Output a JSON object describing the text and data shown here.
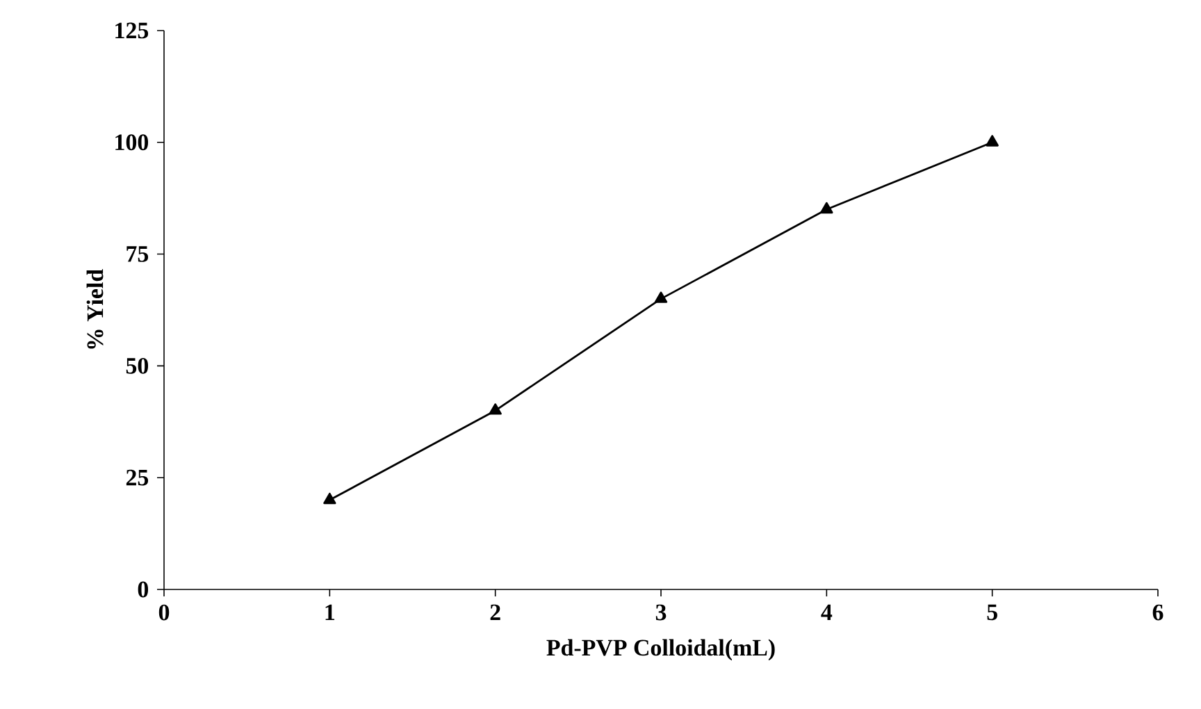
{
  "chart_data": {
    "type": "line",
    "xlabel": "Pd-PVP Colloidal(mL)",
    "ylabel": "% Yield",
    "x": [
      1,
      2,
      3,
      4,
      5
    ],
    "series": [
      {
        "color": "#000000",
        "values": [
          20,
          40,
          65,
          85,
          100
        ]
      }
    ],
    "xlim": [
      0,
      6
    ],
    "ylim": [
      0,
      125
    ],
    "xticks": [
      0,
      1,
      2,
      3,
      4,
      5,
      6
    ],
    "yticks": [
      0,
      25,
      50,
      75,
      100,
      125
    ],
    "marker": "triangle",
    "line_style": "solid"
  }
}
